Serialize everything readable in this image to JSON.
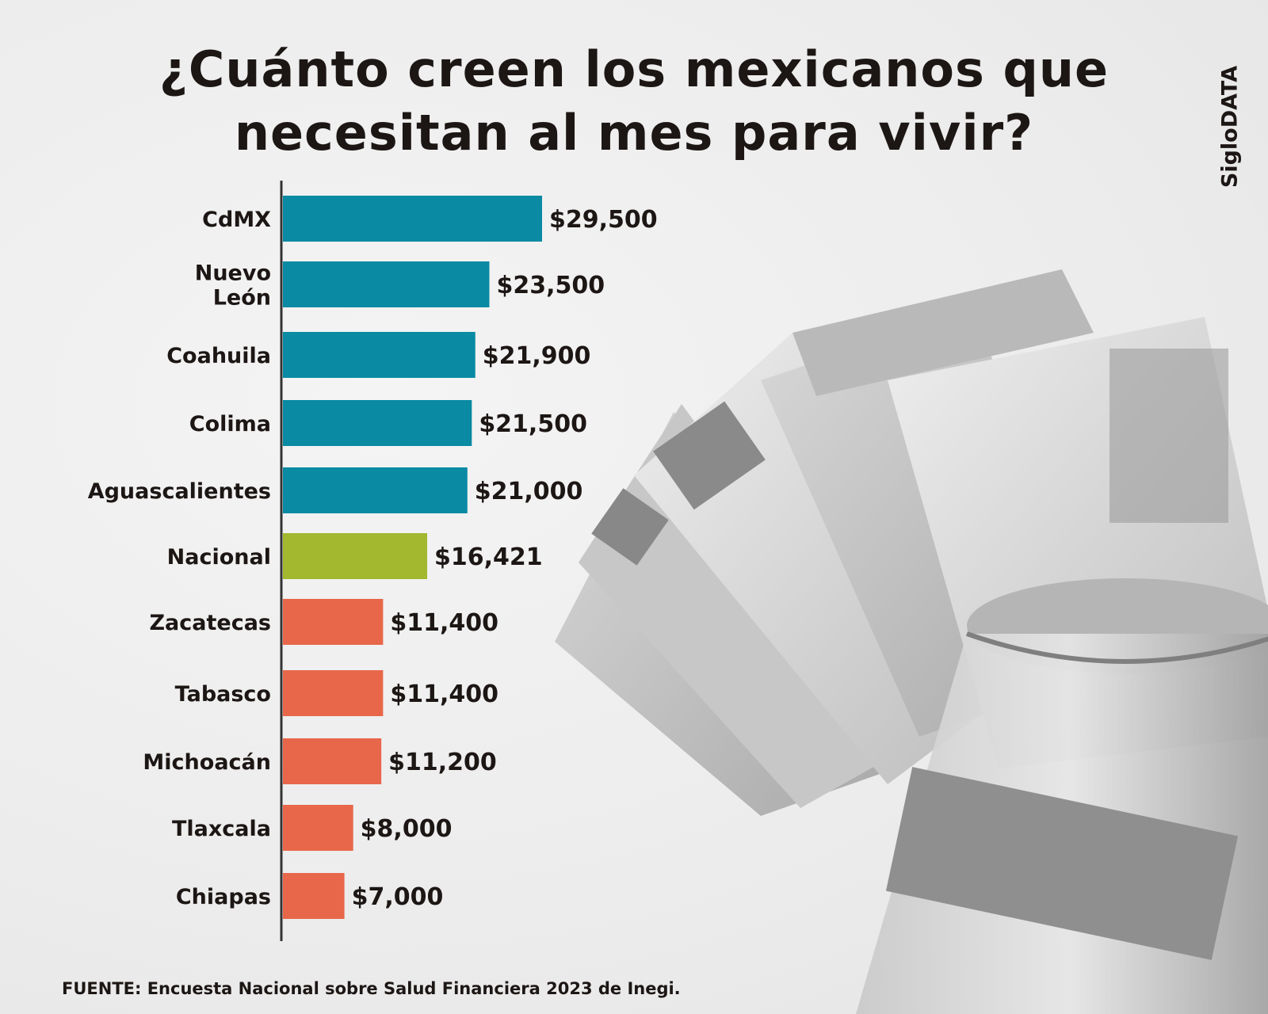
{
  "title_lines": [
    "¿Cuánto creen los mexicanos que",
    "necesitan al mes para vivir?"
  ],
  "brand": "SigloDATA",
  "source": "FUENTE: Encuesta Nacional sobre Salud Financiera 2023 de Inegi.",
  "colors": {
    "above": "#0a8aa3",
    "national": "#a3b72f",
    "below": "#e8674a",
    "axis": "#333333",
    "text": "#1c1614"
  },
  "photo_icon": "banknotes-and-jar-photo",
  "chart_data": {
    "type": "bar",
    "orientation": "horizontal",
    "categories": [
      "CdMX",
      "Nuevo León",
      "Coahuila",
      "Colima",
      "Aguascalientes",
      "Nacional",
      "Zacatecas",
      "Tabasco",
      "Michoacán",
      "Tlaxcala",
      "Chiapas"
    ],
    "category_lines": [
      [
        "CdMX"
      ],
      [
        "Nuevo",
        "León"
      ],
      [
        "Coahuila"
      ],
      [
        "Colima"
      ],
      [
        "Aguascalientes"
      ],
      [
        "Nacional"
      ],
      [
        "Zacatecas"
      ],
      [
        "Tabasco"
      ],
      [
        "Michoacán"
      ],
      [
        "Tlaxcala"
      ],
      [
        "Chiapas"
      ]
    ],
    "values": [
      29500,
      23500,
      21900,
      21500,
      21000,
      16421,
      11400,
      11400,
      11200,
      8000,
      7000
    ],
    "value_labels": [
      "$29,500",
      "$23,500",
      "$21,900",
      "$21,500",
      "$21,000",
      "$16,421",
      "$11,400",
      "$11,400",
      "$11,200",
      "$8,000",
      "$7,000"
    ],
    "groups": [
      "above",
      "above",
      "above",
      "above",
      "above",
      "national",
      "below",
      "below",
      "below",
      "below",
      "below"
    ],
    "title": "¿Cuánto creen los mexicanos que necesitan al mes para vivir?",
    "xlabel": "",
    "ylabel": "",
    "grid": false
  }
}
